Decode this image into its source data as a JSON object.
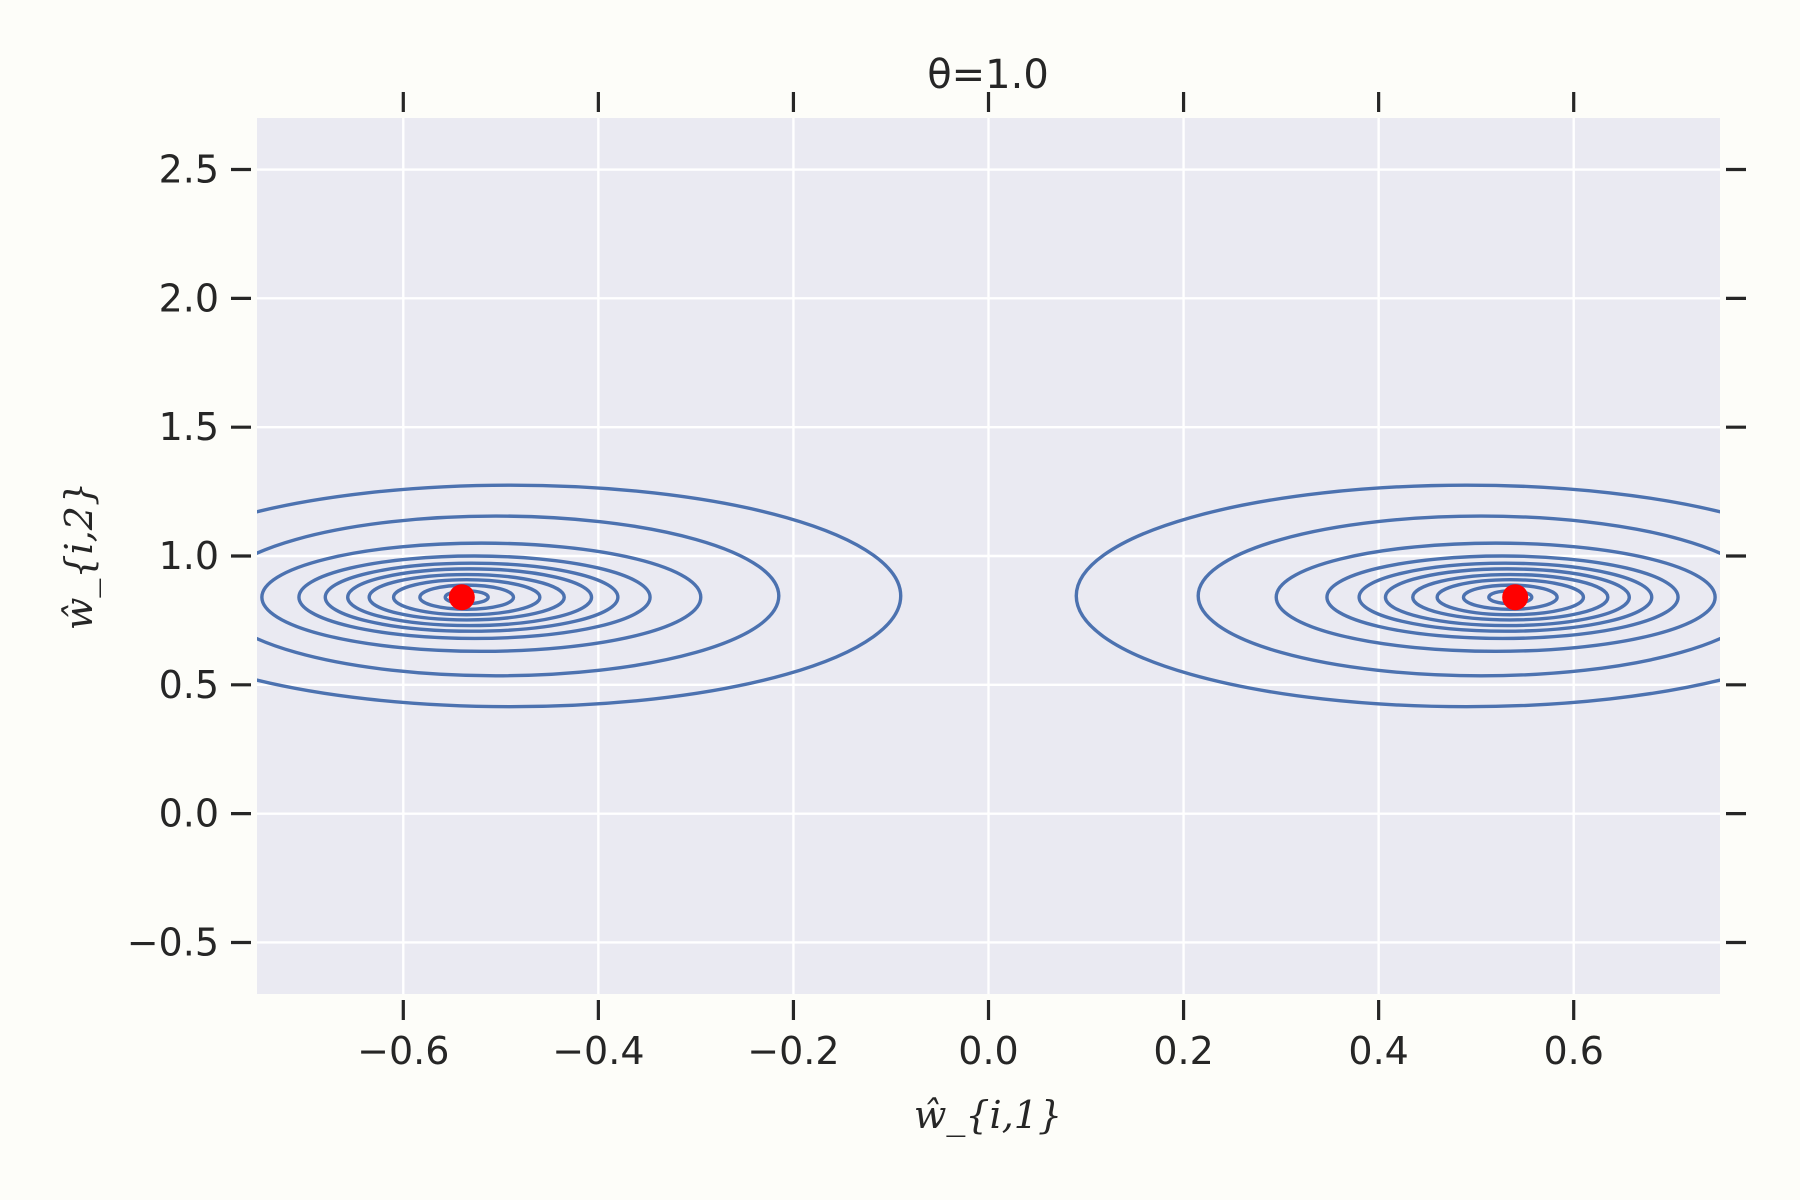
{
  "chart_data": {
    "type": "contour",
    "title": "θ=1.0",
    "xlabel": "ŵ_{i,1}",
    "ylabel": "ŵ_{i,2}",
    "xlim": [
      -0.75,
      0.75
    ],
    "ylim": [
      -0.7,
      2.7
    ],
    "x_ticks": [
      -0.6,
      -0.4,
      -0.2,
      0.0,
      0.2,
      0.4,
      0.6
    ],
    "x_tick_labels": [
      "−0.6",
      "−0.4",
      "−0.2",
      "0.0",
      "0.2",
      "0.4",
      "0.6"
    ],
    "y_ticks": [
      -0.5,
      0.0,
      0.5,
      1.0,
      1.5,
      2.0,
      2.5
    ],
    "y_tick_labels": [
      "−0.5",
      "0.0",
      "0.5",
      "1.0",
      "1.5",
      "2.0",
      "2.5"
    ],
    "grid": true,
    "background": "#eaeaf2",
    "contour_color": "#4c72b0",
    "point_color": "#ff0000",
    "points": [
      {
        "x": -0.54,
        "y": 0.84
      },
      {
        "x": 0.54,
        "y": 0.84
      }
    ],
    "contour_sets": [
      {
        "center": [
          -0.54,
          0.84
        ],
        "rings": [
          {
            "cx": -0.535,
            "cy": 0.84,
            "rx": 0.022,
            "ry": 0.025
          },
          {
            "cx": -0.535,
            "cy": 0.84,
            "rx": 0.048,
            "ry": 0.047
          },
          {
            "cx": -0.535,
            "cy": 0.84,
            "rx": 0.075,
            "ry": 0.068
          },
          {
            "cx": -0.535,
            "cy": 0.84,
            "rx": 0.1,
            "ry": 0.088
          },
          {
            "cx": -0.532,
            "cy": 0.84,
            "rx": 0.125,
            "ry": 0.11
          },
          {
            "cx": -0.53,
            "cy": 0.84,
            "rx": 0.15,
            "ry": 0.132
          },
          {
            "cx": -0.527,
            "cy": 0.84,
            "rx": 0.18,
            "ry": 0.16
          },
          {
            "cx": -0.52,
            "cy": 0.84,
            "rx": 0.225,
            "ry": 0.21
          },
          {
            "cx": -0.505,
            "cy": 0.845,
            "rx": 0.29,
            "ry": 0.31
          },
          {
            "cx": -0.49,
            "cy": 0.845,
            "rx": 0.4,
            "ry": 0.43
          }
        ]
      },
      {
        "center": [
          0.54,
          0.84
        ],
        "rings": [
          {
            "cx": 0.535,
            "cy": 0.84,
            "rx": 0.022,
            "ry": 0.025
          },
          {
            "cx": 0.535,
            "cy": 0.84,
            "rx": 0.048,
            "ry": 0.047
          },
          {
            "cx": 0.535,
            "cy": 0.84,
            "rx": 0.075,
            "ry": 0.068
          },
          {
            "cx": 0.535,
            "cy": 0.84,
            "rx": 0.1,
            "ry": 0.088
          },
          {
            "cx": 0.532,
            "cy": 0.84,
            "rx": 0.125,
            "ry": 0.11
          },
          {
            "cx": 0.53,
            "cy": 0.84,
            "rx": 0.15,
            "ry": 0.132
          },
          {
            "cx": 0.527,
            "cy": 0.84,
            "rx": 0.18,
            "ry": 0.16
          },
          {
            "cx": 0.52,
            "cy": 0.84,
            "rx": 0.225,
            "ry": 0.21
          },
          {
            "cx": 0.505,
            "cy": 0.845,
            "rx": 0.29,
            "ry": 0.31
          },
          {
            "cx": 0.49,
            "cy": 0.845,
            "rx": 0.4,
            "ry": 0.43
          }
        ]
      }
    ]
  }
}
